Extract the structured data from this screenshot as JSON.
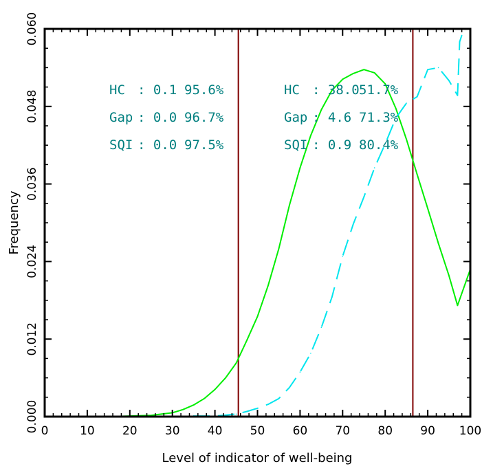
{
  "chart_data": {
    "type": "line",
    "xlabel": "Level of indicator of well-being",
    "ylabel": "Frequency",
    "xlim": [
      0,
      100
    ],
    "ylim": [
      0,
      0.06
    ],
    "x_ticks": [
      "0",
      "10",
      "20",
      "30",
      "40",
      "50",
      "60",
      "70",
      "80",
      "90",
      "100"
    ],
    "y_ticks": [
      "0.000",
      "0.012",
      "0.024",
      "0.036",
      "0.048",
      "0.060"
    ],
    "grid": false,
    "colors": {
      "solid": "#00ee00",
      "dashed": "#00e5ee",
      "vline": "#7f0000",
      "annotation": "#007f7f"
    },
    "series": [
      {
        "style": "solid",
        "x": [
          0,
          5,
          10,
          15,
          20,
          25,
          30,
          32.5,
          35,
          37.5,
          40,
          42.5,
          45,
          47.5,
          50,
          52.5,
          55,
          57.5,
          60,
          62.5,
          65,
          67.5,
          70,
          72.5,
          75,
          77.5,
          80,
          82.5,
          85,
          87.5,
          90,
          92.5,
          95,
          97,
          100
        ],
        "values": [
          0,
          0,
          0,
          0,
          0.0001,
          0.0002,
          0.0006,
          0.0011,
          0.0018,
          0.0028,
          0.0042,
          0.006,
          0.0083,
          0.0118,
          0.0155,
          0.0203,
          0.026,
          0.0327,
          0.0385,
          0.0435,
          0.0475,
          0.0505,
          0.0522,
          0.0531,
          0.0537,
          0.0532,
          0.0515,
          0.0477,
          0.0429,
          0.0375,
          0.0322,
          0.0268,
          0.0218,
          0.0172,
          0.0228
        ]
      },
      {
        "style": "dashed",
        "x": [
          0,
          10,
          20,
          30,
          35,
          40,
          42,
          45,
          47.5,
          50,
          52.5,
          55,
          57.5,
          60,
          62.5,
          65,
          67.5,
          70,
          72.5,
          75,
          77.5,
          80,
          82.5,
          85,
          87.5,
          90,
          92.5,
          95,
          97,
          97.5,
          98
        ],
        "values": [
          0,
          0,
          0,
          0,
          0.0001,
          0.0001,
          0.0002,
          0.0004,
          0.0008,
          0.0013,
          0.0019,
          0.0028,
          0.0045,
          0.0069,
          0.0098,
          0.0138,
          0.0185,
          0.0248,
          0.0298,
          0.034,
          0.0385,
          0.0422,
          0.0462,
          0.0485,
          0.0495,
          0.0537,
          0.054,
          0.052,
          0.0497,
          0.058,
          0.059
        ]
      }
    ],
    "vlines": [
      45.5,
      86.5
    ],
    "annotations": {
      "left": [
        {
          "label": "HC",
          "value": ": 0.1",
          "pct": "95.6%"
        },
        {
          "label": "Gap",
          "value": ": 0.0",
          "pct": "96.7%"
        },
        {
          "label": "SQI",
          "value": ": 0.0",
          "pct": "97.5%"
        }
      ],
      "right": [
        {
          "label": "HC",
          "value": ": 38.0",
          "pct": "51.7%"
        },
        {
          "label": "Gap",
          "value": ": 4.6",
          "pct": "71.3%"
        },
        {
          "label": "SQI",
          "value": ": 0.9",
          "pct": "80.4%"
        }
      ]
    }
  }
}
